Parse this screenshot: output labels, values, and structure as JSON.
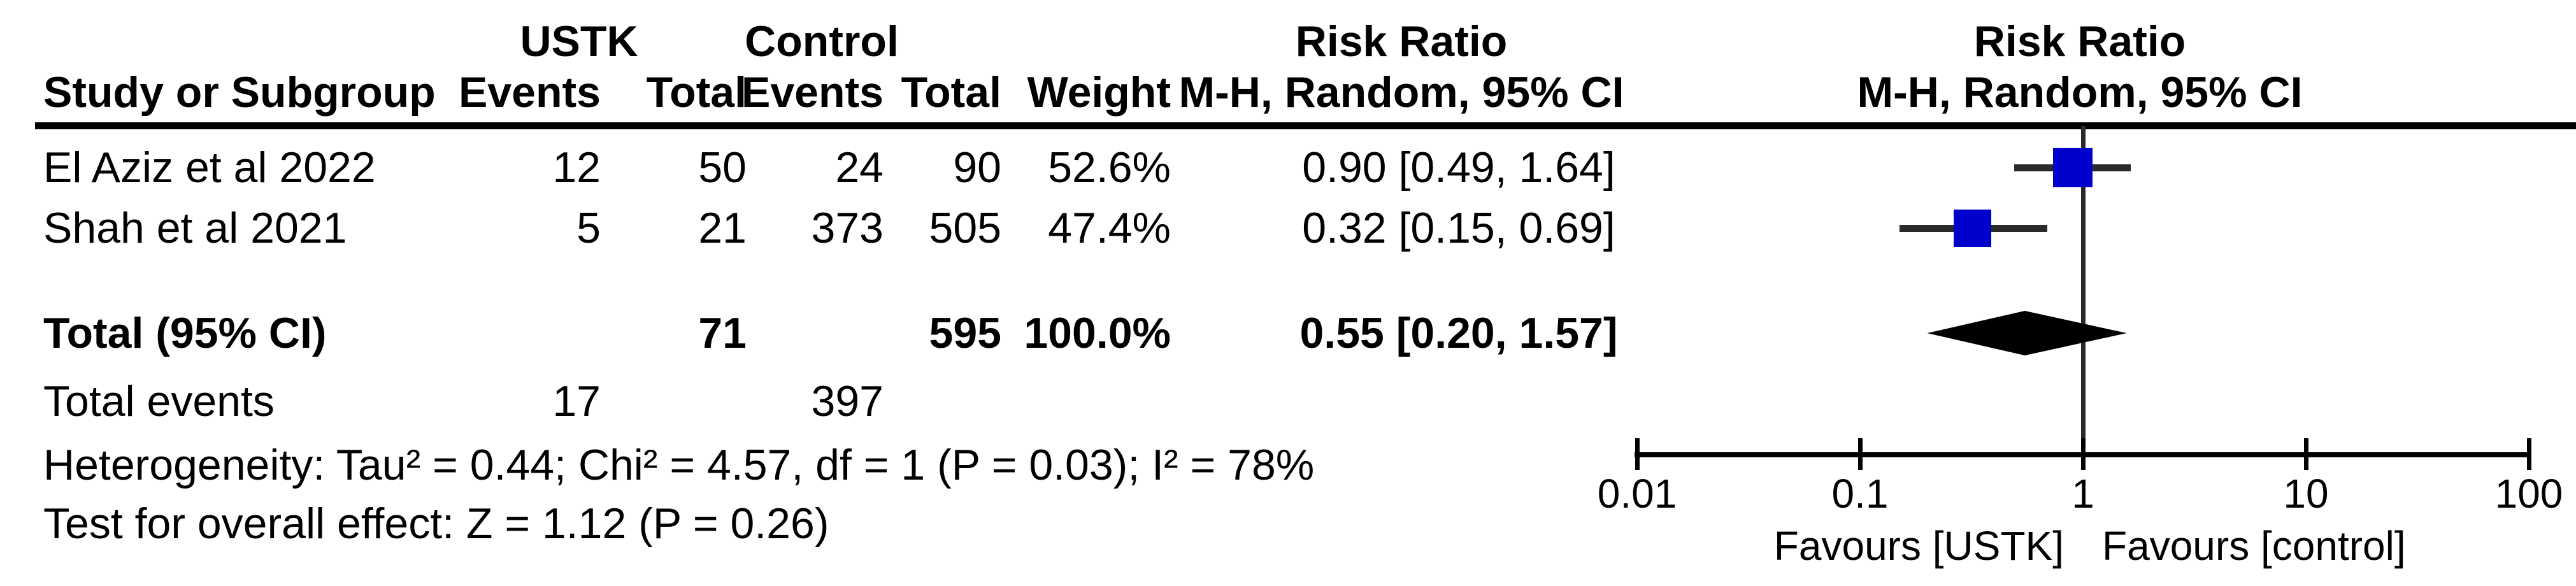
{
  "header": {
    "group_ustk": "USTK",
    "group_control": "Control",
    "risk_ratio_left": "Risk Ratio",
    "risk_ratio_right": "Risk Ratio",
    "method_left": "M-H, Random, 95% CI",
    "method_right": "M-H, Random, 95% CI",
    "col_study": "Study or Subgroup",
    "col_events_ustk": "Events",
    "col_total_ustk": "Total",
    "col_events_control": "Events",
    "col_total_control": "Total",
    "col_weight": "Weight"
  },
  "chart_data": {
    "type": "forest",
    "effect_measure": "Risk Ratio",
    "model": "M-H, Random, 95% CI",
    "x_scale": "log",
    "ticks": [
      0.01,
      0.1,
      1,
      10,
      100
    ],
    "xlim": [
      0.01,
      100
    ],
    "studies": [
      {
        "name": "El Aziz et al 2022",
        "ustk_events": 12,
        "ustk_total": 50,
        "control_events": 24,
        "control_total": 90,
        "weight_text": "52.6%",
        "weight_pct": 52.6,
        "ci_text": "0.90 [0.49, 1.64]",
        "rr": 0.9,
        "ci_low": 0.49,
        "ci_high": 1.64
      },
      {
        "name": "Shah et al 2021",
        "ustk_events": 5,
        "ustk_total": 21,
        "control_events": 373,
        "control_total": 505,
        "weight_text": "47.4%",
        "weight_pct": 47.4,
        "ci_text": "0.32 [0.15, 0.69]",
        "rr": 0.32,
        "ci_low": 0.15,
        "ci_high": 0.69
      }
    ],
    "total": {
      "label": "Total (95% CI)",
      "ustk_total": 71,
      "control_total": 595,
      "weight_text": "100.0%",
      "ci_text": "0.55 [0.20, 1.57]",
      "rr": 0.55,
      "ci_low": 0.2,
      "ci_high": 1.57
    },
    "total_events": {
      "label": "Total events",
      "ustk": 17,
      "control": 397
    },
    "heterogeneity": "Heterogeneity: Tau² = 0.44; Chi² = 4.57, df = 1 (P = 0.03); I² = 78%",
    "overall_effect": "Test for overall effect: Z = 1.12 (P = 0.26)",
    "favours_left": "Favours [USTK]",
    "favours_right": "Favours [control]",
    "colors": {
      "square": "#0000cc",
      "ci_line": "#2a2a2a",
      "diamond": "#000000",
      "axis": "#000000"
    }
  }
}
